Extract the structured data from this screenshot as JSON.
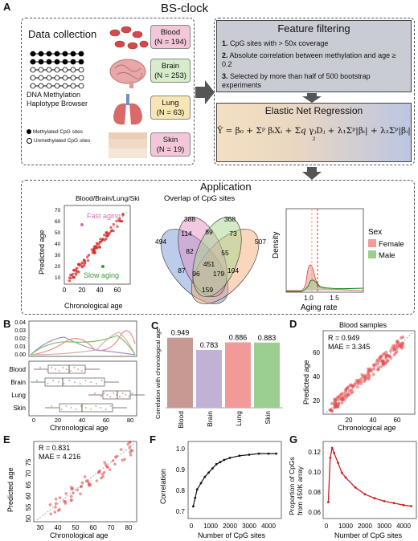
{
  "panel_a": {
    "letter": "A",
    "title": "BS-clock",
    "data_collection": {
      "title": "Data collection",
      "browser_label_1": "DNA Methylation",
      "browser_label_2": "Haplotype Browser",
      "legend_methylated": "Methylated CpG sites",
      "legend_unmethylated": "Unmethylated CpG sites",
      "tissues": [
        {
          "name": "Blood",
          "n": "(N = 194)",
          "color": "#f3c7d9"
        },
        {
          "name": "Brain",
          "n": "(N = 253)",
          "color": "#d6eccb"
        },
        {
          "name": "Lung",
          "n": "(N = 63)",
          "color": "#f7e6b3"
        },
        {
          "name": "Skin",
          "n": "(N = 19)",
          "color": "#f3c7d9"
        }
      ]
    },
    "feature_filtering": {
      "title": "Feature filtering",
      "items": [
        {
          "num": "1.",
          "text": "CpG sites with > 50x coverage"
        },
        {
          "num": "2.",
          "text": "Absolute correlation between methylation and age ≥ 0.2"
        },
        {
          "num": "3.",
          "text": "Selected by more than half of 500 bootstrap experiments"
        }
      ]
    },
    "elastic_net": {
      "title": "Elastic Net Regression",
      "formula": "Ŷ = β₀ + Σᵖ βᵢXᵢ + Σ𝑞 γⱼDⱼ + λ₁Σᵖ|βᵢ| + λ₂Σᵖ|βᵢ|²"
    },
    "application": {
      "title": "Application",
      "scatter_title": "Blood/Brain/Lung/Skin",
      "scatter_xlabel": "Chronological age",
      "scatter_ylabel": "Predicted age",
      "fast_label": "Fast aging",
      "slow_label": "Slow aging",
      "scatter_xticks": [
        "0",
        "20",
        "40",
        "60"
      ],
      "scatter_yticks": [
        "70",
        "60",
        "50",
        "40",
        "30",
        "20",
        "10"
      ],
      "venn_title": "Overlap of CpG sites",
      "venn_numbers": [
        "388",
        "368",
        "494",
        "114",
        "89",
        "73",
        "507",
        "82",
        "55",
        "451",
        "87",
        "96",
        "179",
        "104",
        "159"
      ],
      "density_ylabel": "Density",
      "density_xlabel": "Aging rate",
      "density_xticks": [
        "1.0",
        "1.5"
      ],
      "sex_title": "Sex",
      "sex_female": "Female",
      "sex_male": "Male",
      "female_color": "#f29a9a",
      "male_color": "#9bcf8f"
    }
  },
  "panel_b": {
    "letter": "B",
    "density_yticks": [
      "0.04",
      "0.03",
      "0.02",
      "0.01",
      "0.00"
    ],
    "tissues": [
      "Blood",
      "Brain",
      "Lung",
      "Skin"
    ],
    "xlabel": "Chronological age",
    "xticks": [
      "0",
      "20",
      "40",
      "60",
      "80"
    ]
  },
  "panel_c": {
    "letter": "C",
    "ylabel": "Correlation with chronological age",
    "bars": [
      {
        "label": "Blood",
        "value": "0.949",
        "color": "#c89993"
      },
      {
        "label": "Brain",
        "value": "0.783",
        "color": "#c1b1d6"
      },
      {
        "label": "Lung",
        "value": "0.886",
        "color": "#f29a9a"
      },
      {
        "label": "Skin",
        "value": "0.883",
        "color": "#9bcf8f"
      }
    ]
  },
  "panel_d": {
    "letter": "D",
    "title": "Blood samples",
    "r_label": "R = 0.949",
    "mae_label": "MAE = 3.345",
    "xlabel": "Chronological age",
    "ylabel": "Predicted age",
    "xticks": [
      "20",
      "40",
      "60"
    ],
    "yticks": [
      "60",
      "40",
      "20"
    ]
  },
  "panel_e": {
    "letter": "E",
    "r_label": "R = 0.831",
    "mae_label": "MAE = 4.216",
    "xlabel": "Chronological age",
    "ylabel": "Predicted age",
    "xticks": [
      "30",
      "40",
      "50",
      "60",
      "70",
      "80"
    ],
    "yticks": [
      "75",
      "70",
      "65",
      "60",
      "55",
      "50"
    ]
  },
  "panel_f": {
    "letter": "F",
    "xlabel": "Number of CpG sites",
    "ylabel": "Correlation",
    "xticks": [
      "0",
      "1000",
      "2000",
      "3000",
      "4000"
    ],
    "yticks": [
      "1.0",
      "0.9",
      "0.8",
      "0.7"
    ]
  },
  "panel_g": {
    "letter": "G",
    "xlabel": "Number of CpG sites",
    "ylabel_1": "Proportion of CpGs",
    "ylabel_2": "from 450K array",
    "xticks": [
      "0",
      "1000",
      "2000",
      "3000",
      "4000"
    ],
    "yticks": [
      "0.12",
      "0.10",
      "0.08",
      "0.06"
    ]
  },
  "chart_data": [
    {
      "type": "bar",
      "categories": [
        "Blood",
        "Brain",
        "Lung",
        "Skin"
      ],
      "values": [
        0.949,
        0.783,
        0.886,
        0.883
      ],
      "ylabel": "Correlation with chronological age",
      "ylim": [
        0,
        1
      ]
    },
    {
      "type": "line",
      "xlabel": "Number of CpG sites",
      "ylabel": "Correlation",
      "x": [
        100,
        200,
        300,
        500,
        700,
        900,
        1100,
        1300,
        1500,
        1700,
        2000,
        2500,
        3000,
        3500,
        4000,
        4400
      ],
      "y": [
        0.7,
        0.74,
        0.78,
        0.81,
        0.84,
        0.86,
        0.88,
        0.9,
        0.91,
        0.92,
        0.93,
        0.94,
        0.945,
        0.95,
        0.95,
        0.95
      ],
      "ylim": [
        0.65,
        1.0
      ]
    },
    {
      "type": "line",
      "xlabel": "Number of CpG sites",
      "ylabel": "Proportion of CpGs from 450K array",
      "x": [
        100,
        200,
        300,
        400,
        600,
        800,
        1000,
        1500,
        2000,
        2500,
        3000,
        3500,
        4000,
        4400
      ],
      "y": [
        0.07,
        0.115,
        0.125,
        0.12,
        0.11,
        0.1,
        0.095,
        0.085,
        0.078,
        0.074,
        0.071,
        0.069,
        0.067,
        0.066
      ],
      "ylim": [
        0.055,
        0.13
      ]
    }
  ]
}
